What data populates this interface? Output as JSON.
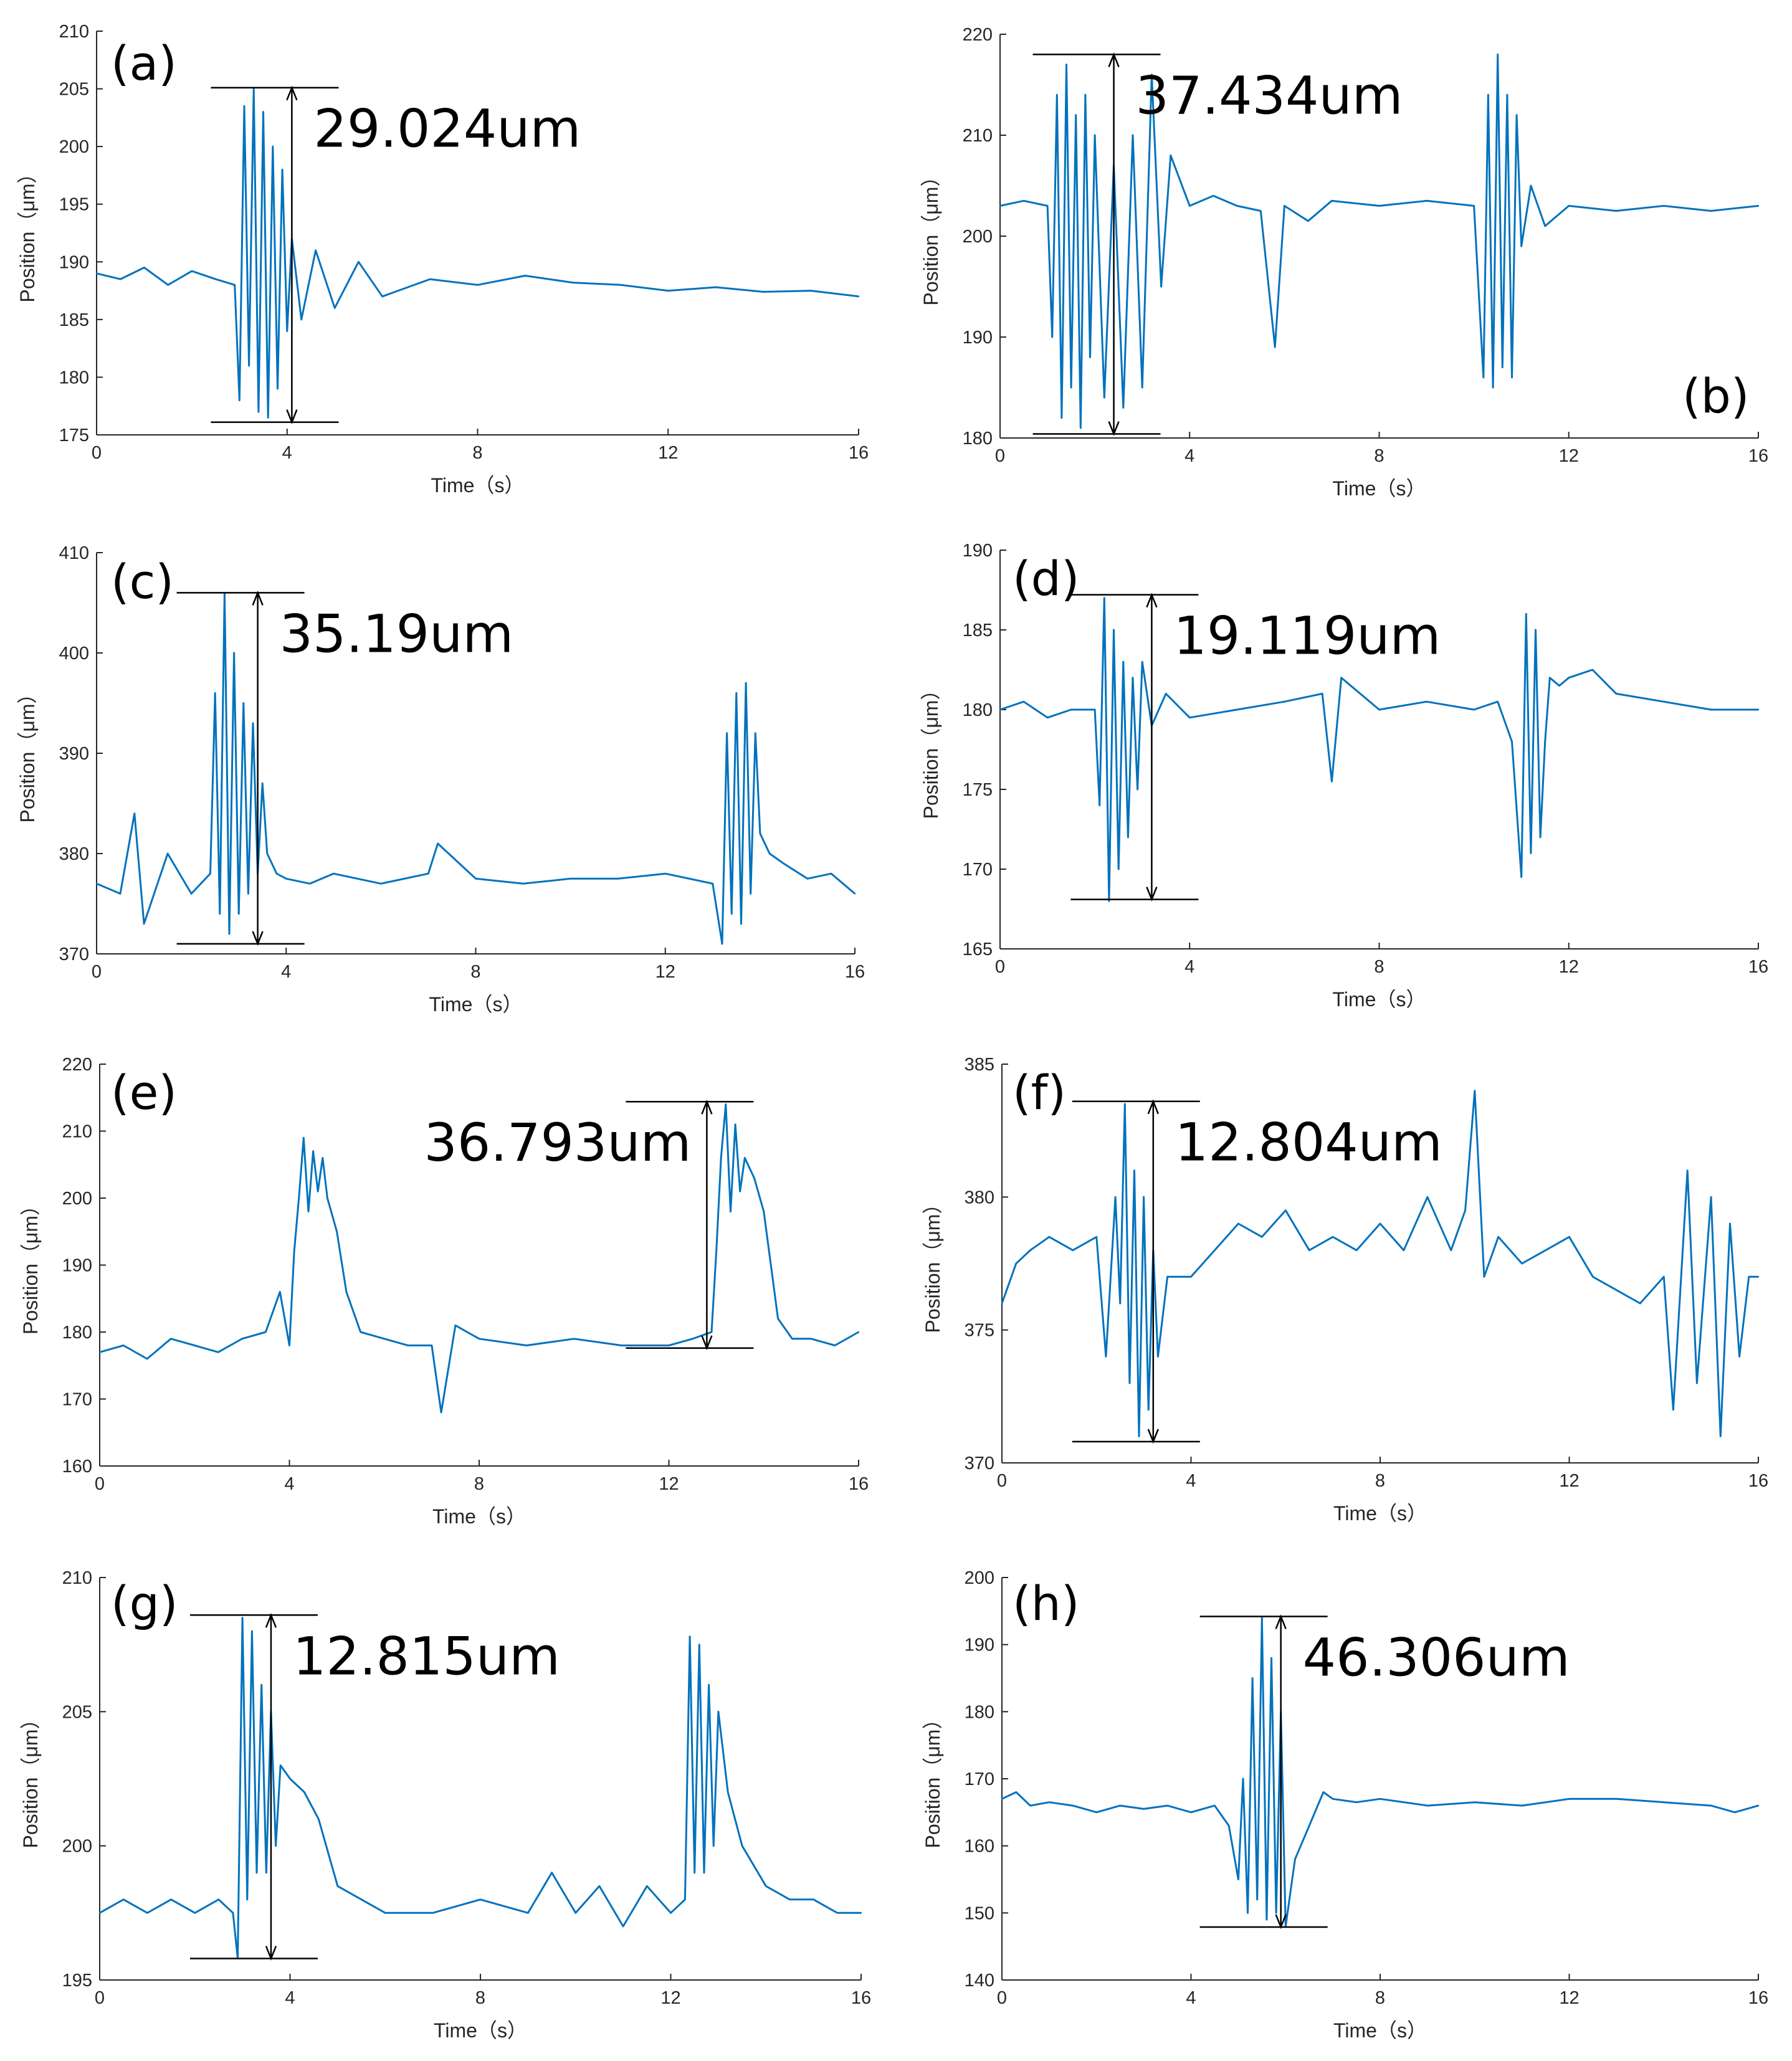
{
  "chart_data": [
    {
      "type": "line",
      "panel": "(a)",
      "xlabel": "Time（s）",
      "ylabel": "Position（μm）",
      "xlim": [
        0,
        16
      ],
      "ylim": [
        175,
        210
      ],
      "xticks": [
        0,
        4,
        8,
        12,
        16
      ],
      "yticks": [
        175,
        180,
        185,
        190,
        195,
        200,
        205,
        210
      ],
      "annotation": {
        "text": "29.024um",
        "x": 4.1,
        "y_top": 205.1,
        "y_bottom": 176.1
      },
      "series": [
        {
          "name": "position",
          "color": "#0072BD",
          "x": [
            0,
            0.5,
            1.0,
            1.5,
            2.0,
            2.5,
            2.9,
            3.0,
            3.1,
            3.2,
            3.3,
            3.4,
            3.5,
            3.6,
            3.7,
            3.8,
            3.9,
            4.0,
            4.1,
            4.3,
            4.6,
            5.0,
            5.5,
            6.0,
            7.0,
            8.0,
            9.0,
            10.0,
            11.0,
            12.0,
            13.0,
            14.0,
            15.0,
            16.0
          ],
          "y": [
            189.0,
            188.5,
            189.5,
            188.0,
            189.2,
            188.5,
            188.0,
            178.0,
            203.5,
            181.0,
            205.0,
            177.0,
            203.0,
            176.5,
            200.0,
            179.0,
            198.0,
            184.0,
            192.0,
            185.0,
            191.0,
            186.0,
            190.0,
            187.0,
            188.5,
            188.0,
            188.8,
            188.2,
            188.0,
            187.5,
            187.8,
            187.4,
            187.5,
            187.0
          ]
        }
      ]
    },
    {
      "type": "line",
      "panel": "(b)",
      "xlabel": "Time（s）",
      "ylabel": "Position（μm）",
      "xlim": [
        0,
        16
      ],
      "ylim": [
        180,
        220
      ],
      "xticks": [
        0,
        4,
        8,
        12,
        16
      ],
      "yticks": [
        180,
        190,
        200,
        210,
        220
      ],
      "annotation": {
        "text": "37.434um",
        "x": 2.4,
        "y_top": 218.0,
        "y_bottom": 180.4
      },
      "series": [
        {
          "name": "position",
          "color": "#0072BD",
          "x": [
            0,
            0.5,
            1.0,
            1.1,
            1.2,
            1.3,
            1.4,
            1.5,
            1.6,
            1.7,
            1.8,
            1.9,
            2.0,
            2.2,
            2.4,
            2.6,
            2.8,
            3.0,
            3.2,
            3.4,
            3.6,
            4.0,
            4.5,
            5.0,
            5.5,
            5.8,
            6.0,
            6.5,
            7.0,
            8.0,
            9.0,
            10.0,
            10.2,
            10.3,
            10.4,
            10.5,
            10.6,
            10.7,
            10.8,
            10.9,
            11.0,
            11.2,
            11.5,
            12.0,
            13.0,
            14.0,
            15.0,
            16.0
          ],
          "y": [
            203.0,
            203.5,
            203.0,
            190.0,
            214.0,
            182.0,
            217.0,
            185.0,
            212.0,
            181.0,
            214.0,
            188.0,
            210.0,
            184.0,
            207.0,
            183.0,
            210.0,
            185.0,
            216.0,
            195.0,
            208.0,
            203.0,
            204.0,
            203.0,
            202.5,
            189.0,
            203.0,
            201.5,
            203.5,
            203.0,
            203.5,
            203.0,
            186.0,
            214.0,
            185.0,
            218.0,
            187.0,
            214.0,
            186.0,
            212.0,
            199.0,
            205.0,
            201.0,
            203.0,
            202.5,
            203.0,
            202.5,
            203.0
          ]
        }
      ]
    },
    {
      "type": "line",
      "panel": "(c)",
      "xlabel": "Time（s）",
      "ylabel": "Position（μm）",
      "xlim": [
        0,
        16
      ],
      "ylim": [
        370,
        410
      ],
      "xticks": [
        0,
        4,
        8,
        12,
        16
      ],
      "yticks": [
        370,
        380,
        390,
        400,
        410
      ],
      "annotation": {
        "text": "35.19um",
        "x": 3.4,
        "y_top": 406.0,
        "y_bottom": 371.0
      },
      "series": [
        {
          "name": "position",
          "color": "#0072BD",
          "x": [
            0,
            0.5,
            0.8,
            1.0,
            1.5,
            2.0,
            2.4,
            2.5,
            2.6,
            2.7,
            2.8,
            2.9,
            3.0,
            3.1,
            3.2,
            3.3,
            3.4,
            3.5,
            3.6,
            3.8,
            4.0,
            4.5,
            5.0,
            6.0,
            7.0,
            7.2,
            8.0,
            9.0,
            10.0,
            11.0,
            12.0,
            13.0,
            13.2,
            13.3,
            13.4,
            13.5,
            13.6,
            13.7,
            13.8,
            13.9,
            14.0,
            14.2,
            14.5,
            15.0,
            15.5,
            16.0
          ],
          "y": [
            377.0,
            376.0,
            384.0,
            373.0,
            380.0,
            376.0,
            378.0,
            396.0,
            374.0,
            406.0,
            372.0,
            400.0,
            374.0,
            395.0,
            376.0,
            393.0,
            378.0,
            387.0,
            380.0,
            378.0,
            377.5,
            377.0,
            378.0,
            377.0,
            378.0,
            381.0,
            377.5,
            377.0,
            377.5,
            377.5,
            378.0,
            377.0,
            371.0,
            392.0,
            374.0,
            396.0,
            373.0,
            397.0,
            376.0,
            392.0,
            382.0,
            380.0,
            379.0,
            377.5,
            378.0,
            376.0
          ]
        }
      ]
    },
    {
      "type": "line",
      "panel": "(d)",
      "xlabel": "Time（s）",
      "ylabel": "Position（μm）",
      "xlim": [
        0,
        16
      ],
      "ylim": [
        165,
        190
      ],
      "xticks": [
        0,
        4,
        8,
        12,
        16
      ],
      "yticks": [
        165,
        170,
        175,
        180,
        185,
        190
      ],
      "annotation": {
        "text": "19.119um",
        "x": 3.2,
        "y_top": 187.2,
        "y_bottom": 168.1
      },
      "series": [
        {
          "name": "position",
          "color": "#0072BD",
          "x": [
            0,
            0.5,
            1.0,
            1.5,
            2.0,
            2.1,
            2.2,
            2.3,
            2.4,
            2.5,
            2.6,
            2.7,
            2.8,
            2.9,
            3.0,
            3.2,
            3.5,
            4.0,
            5.0,
            6.0,
            6.8,
            7.0,
            7.2,
            8.0,
            9.0,
            10.0,
            10.5,
            10.8,
            11.0,
            11.1,
            11.2,
            11.3,
            11.4,
            11.5,
            11.6,
            11.8,
            12.0,
            12.5,
            13.0,
            14.0,
            15.0,
            16.0
          ],
          "y": [
            180.0,
            180.5,
            179.5,
            180.0,
            180.0,
            174.0,
            187.0,
            168.0,
            185.0,
            170.0,
            183.0,
            172.0,
            182.0,
            175.0,
            183.0,
            179.0,
            181.0,
            179.5,
            180.0,
            180.5,
            181.0,
            175.5,
            182.0,
            180.0,
            180.5,
            180.0,
            180.5,
            178.0,
            169.5,
            186.0,
            171.0,
            185.0,
            172.0,
            178.0,
            182.0,
            181.5,
            182.0,
            182.5,
            181.0,
            180.5,
            180.0,
            180.0
          ]
        }
      ]
    },
    {
      "type": "line",
      "panel": "(e)",
      "xlabel": "Time（s）",
      "ylabel": "Position（μm）",
      "xlim": [
        0,
        16
      ],
      "ylim": [
        160,
        220
      ],
      "xticks": [
        0,
        4,
        8,
        12,
        16
      ],
      "yticks": [
        160,
        170,
        180,
        190,
        200,
        210,
        220
      ],
      "annotation": {
        "text": "36.793um",
        "x": 12.8,
        "y_top": 214.4,
        "y_bottom": 177.6
      },
      "series": [
        {
          "name": "position",
          "color": "#0072BD",
          "x": [
            0,
            0.5,
            1.0,
            1.5,
            2.0,
            2.5,
            3.0,
            3.5,
            3.8,
            4.0,
            4.1,
            4.2,
            4.3,
            4.4,
            4.5,
            4.6,
            4.7,
            4.8,
            5.0,
            5.2,
            5.5,
            6.0,
            6.5,
            7.0,
            7.2,
            7.5,
            8.0,
            9.0,
            10.0,
            11.0,
            12.0,
            12.5,
            12.9,
            13.0,
            13.1,
            13.2,
            13.3,
            13.4,
            13.5,
            13.6,
            13.8,
            14.0,
            14.3,
            14.6,
            15.0,
            15.5,
            16.0
          ],
          "y": [
            177.0,
            178.0,
            176.0,
            179.0,
            178.0,
            177.0,
            179.0,
            180.0,
            186.0,
            178.0,
            192.0,
            200.0,
            209.0,
            198.0,
            207.0,
            201.0,
            206.0,
            200.0,
            195.0,
            186.0,
            180.0,
            179.0,
            178.0,
            178.0,
            168.0,
            181.0,
            179.0,
            178.0,
            179.0,
            178.0,
            178.0,
            179.0,
            180.0,
            192.0,
            206.0,
            214.0,
            198.0,
            211.0,
            201.0,
            206.0,
            203.0,
            198.0,
            182.0,
            179.0,
            179.0,
            178.0,
            180.0
          ]
        }
      ]
    },
    {
      "type": "line",
      "panel": "(f)",
      "xlabel": "Time（s）",
      "ylabel": "Position（μm）",
      "xlim": [
        0,
        16
      ],
      "ylim": [
        370,
        385
      ],
      "xticks": [
        0,
        4,
        8,
        12,
        16
      ],
      "yticks": [
        370,
        375,
        380,
        385
      ],
      "annotation": {
        "text": "12.804um",
        "x": 3.2,
        "y_top": 383.6,
        "y_bottom": 370.8
      },
      "series": [
        {
          "name": "position",
          "color": "#0072BD",
          "x": [
            0,
            0.3,
            0.6,
            1.0,
            1.5,
            2.0,
            2.2,
            2.4,
            2.5,
            2.6,
            2.7,
            2.8,
            2.9,
            3.0,
            3.1,
            3.2,
            3.3,
            3.5,
            4.0,
            4.5,
            5.0,
            5.5,
            6.0,
            6.5,
            7.0,
            7.5,
            8.0,
            8.5,
            9.0,
            9.5,
            9.8,
            10.0,
            10.2,
            10.5,
            11.0,
            11.5,
            12.0,
            12.5,
            13.0,
            13.5,
            14.0,
            14.2,
            14.5,
            14.7,
            15.0,
            15.2,
            15.4,
            15.6,
            15.8,
            16.0
          ],
          "y": [
            376.0,
            377.5,
            378.0,
            378.5,
            378.0,
            378.5,
            374.0,
            380.0,
            376.0,
            383.5,
            373.0,
            381.0,
            371.0,
            380.0,
            372.0,
            378.0,
            374.0,
            377.0,
            377.0,
            378.0,
            379.0,
            378.5,
            379.5,
            378.0,
            378.5,
            378.0,
            379.0,
            378.0,
            380.0,
            378.0,
            379.5,
            384.0,
            377.0,
            378.5,
            377.5,
            378.0,
            378.5,
            377.0,
            376.5,
            376.0,
            377.0,
            372.0,
            381.0,
            373.0,
            380.0,
            371.0,
            379.0,
            374.0,
            377.0,
            377.0
          ]
        }
      ]
    },
    {
      "type": "line",
      "panel": "(g)",
      "xlabel": "Time（s）",
      "ylabel": "Position（μm）",
      "xlim": [
        0,
        16
      ],
      "ylim": [
        195,
        210
      ],
      "xticks": [
        0,
        4,
        8,
        12,
        16
      ],
      "yticks": [
        195,
        200,
        205,
        210
      ],
      "annotation": {
        "text": "12.815um",
        "x": 3.6,
        "y_top": 208.6,
        "y_bottom": 195.8
      },
      "series": [
        {
          "name": "position",
          "color": "#0072BD",
          "x": [
            0,
            0.5,
            1.0,
            1.5,
            2.0,
            2.5,
            2.8,
            2.9,
            3.0,
            3.1,
            3.2,
            3.3,
            3.4,
            3.5,
            3.6,
            3.7,
            3.8,
            4.0,
            4.3,
            4.6,
            5.0,
            5.5,
            6.0,
            7.0,
            8.0,
            9.0,
            9.5,
            10.0,
            10.5,
            11.0,
            11.5,
            12.0,
            12.3,
            12.4,
            12.5,
            12.6,
            12.7,
            12.8,
            12.9,
            13.0,
            13.2,
            13.5,
            14.0,
            14.5,
            15.0,
            15.5,
            16.0
          ],
          "y": [
            197.5,
            198.0,
            197.5,
            198.0,
            197.5,
            198.0,
            197.5,
            195.8,
            208.5,
            198.0,
            208.0,
            199.0,
            206.0,
            199.0,
            205.0,
            200.0,
            203.0,
            202.5,
            202.0,
            201.0,
            198.5,
            198.0,
            197.5,
            197.5,
            198.0,
            197.5,
            199.0,
            197.5,
            198.5,
            197.0,
            198.5,
            197.5,
            198.0,
            207.8,
            199.0,
            207.5,
            199.0,
            206.0,
            200.0,
            205.0,
            202.0,
            200.0,
            198.5,
            198.0,
            198.0,
            197.5,
            197.5
          ]
        }
      ]
    },
    {
      "type": "line",
      "panel": "(h)",
      "xlabel": "Time（s）",
      "ylabel": "Position（μm）",
      "xlim": [
        0,
        16
      ],
      "ylim": [
        140,
        200
      ],
      "xticks": [
        0,
        4,
        8,
        12,
        16
      ],
      "yticks": [
        140,
        150,
        160,
        170,
        180,
        190,
        200
      ],
      "annotation": {
        "text": "46.306um",
        "x": 5.9,
        "y_top": 194.2,
        "y_bottom": 147.9
      },
      "series": [
        {
          "name": "position",
          "color": "#0072BD",
          "x": [
            0,
            0.3,
            0.6,
            1.0,
            1.5,
            2.0,
            2.5,
            3.0,
            3.5,
            4.0,
            4.5,
            4.8,
            5.0,
            5.1,
            5.2,
            5.3,
            5.4,
            5.5,
            5.6,
            5.7,
            5.8,
            5.9,
            6.0,
            6.2,
            6.5,
            6.8,
            7.0,
            7.5,
            8.0,
            9.0,
            10.0,
            11.0,
            12.0,
            13.0,
            14.0,
            15.0,
            15.5,
            16.0
          ],
          "y": [
            167.0,
            168.0,
            166.0,
            166.5,
            166.0,
            165.0,
            166.0,
            165.5,
            166.0,
            165.0,
            166.0,
            163.0,
            155.0,
            170.0,
            150.0,
            185.0,
            152.0,
            194.0,
            149.0,
            188.0,
            150.0,
            180.0,
            148.0,
            158.0,
            163.0,
            168.0,
            167.0,
            166.5,
            167.0,
            166.0,
            166.5,
            166.0,
            167.0,
            167.0,
            166.5,
            166.0,
            165.0,
            166.0
          ]
        }
      ]
    }
  ]
}
